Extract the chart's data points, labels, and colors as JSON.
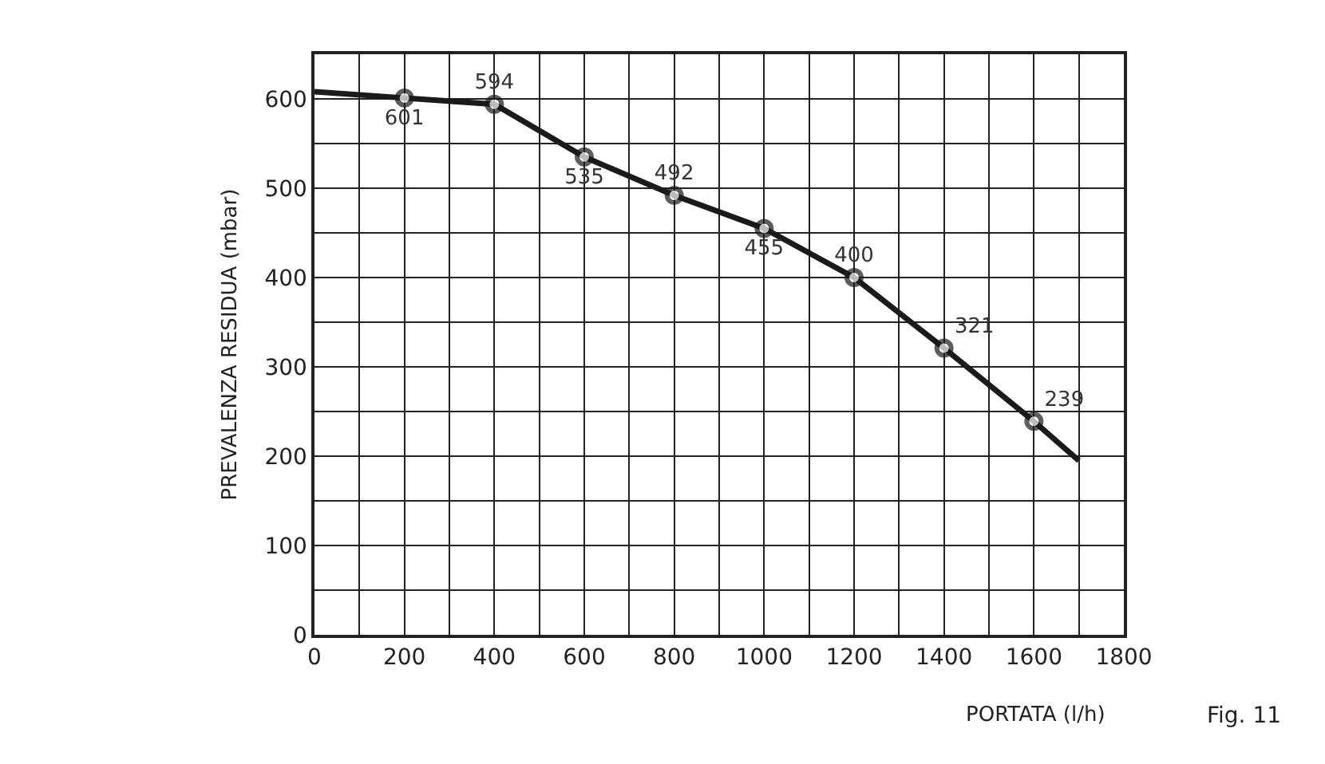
{
  "chart_data": {
    "type": "line",
    "xlabel": "PORTATA (l/h)",
    "ylabel": "PREVALENZA RESIDUA (mbar)",
    "x": [
      0,
      200,
      400,
      600,
      800,
      1000,
      1200,
      1400,
      1600,
      1700
    ],
    "series": [
      {
        "color": "#1a1a1a",
        "values": [
          608,
          601,
          594,
          535,
          492,
          455,
          400,
          321,
          239,
          195
        ],
        "value_labels": [
          null,
          "601",
          "594",
          "535",
          "492",
          "455",
          "400",
          "321",
          "239",
          null
        ]
      }
    ],
    "marker": "circle",
    "line_style": "solid",
    "grid": true,
    "xlim": [
      0,
      1800
    ],
    "xticks": [
      0,
      {
        "value": 100,
        "label": null
      },
      200,
      {
        "value": 300,
        "label": null
      },
      400,
      {
        "value": 500,
        "label": null
      },
      600,
      {
        "value": 700,
        "label": null
      },
      800,
      {
        "value": 900,
        "label": null
      },
      1000,
      {
        "value": 1100,
        "label": null
      },
      1200,
      {
        "value": 1300,
        "label": null
      },
      1400,
      {
        "value": 1500,
        "label": null
      },
      1600,
      {
        "value": 1700,
        "label": null
      },
      1800
    ],
    "ylim": [
      0,
      650
    ],
    "yticks": [
      0,
      {
        "value": 50,
        "label": null
      },
      100,
      {
        "value": 150,
        "label": null
      },
      200,
      {
        "value": 250,
        "label": null
      },
      300,
      {
        "value": 350,
        "label": null
      },
      400,
      {
        "value": 450,
        "label": null
      },
      500,
      {
        "value": 550,
        "label": null
      },
      600,
      {
        "value": 650,
        "label": null
      }
    ],
    "annotations": [
      "Fig. 11"
    ]
  }
}
